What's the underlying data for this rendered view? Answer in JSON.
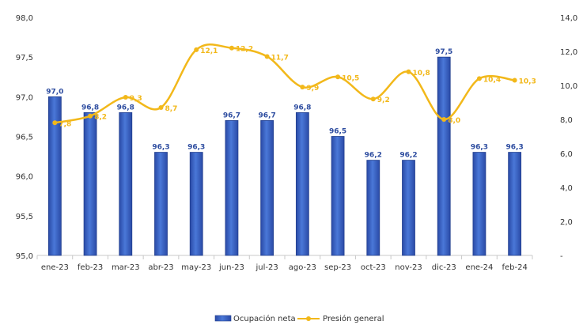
{
  "chart_data": {
    "type": "bar",
    "categories": [
      "ene-23",
      "feb-23",
      "mar-23",
      "abr-23",
      "may-23",
      "jun-23",
      "jul-23",
      "ago-23",
      "sep-23",
      "oct-23",
      "nov-23",
      "dic-23",
      "ene-24",
      "feb-24"
    ],
    "series": [
      {
        "name": "Ocupación neta",
        "type": "bar",
        "axis": "left",
        "color": "#3b63c4",
        "values": [
          97.0,
          96.8,
          96.8,
          96.3,
          96.3,
          96.7,
          96.7,
          96.8,
          96.5,
          96.2,
          96.2,
          97.5,
          96.3,
          96.3
        ],
        "labels": [
          "97,0",
          "96,8",
          "96,8",
          "96,3",
          "96,3",
          "96,7",
          "96,7",
          "96,8",
          "96,5",
          "96,2",
          "96,2",
          "97,5",
          "96,3",
          "96,3"
        ]
      },
      {
        "name": "Presión general",
        "type": "line",
        "axis": "right",
        "color": "#f2b81a",
        "values": [
          7.8,
          8.2,
          9.3,
          8.7,
          12.1,
          12.2,
          11.7,
          9.9,
          10.5,
          9.2,
          10.8,
          8.0,
          10.4,
          10.3
        ],
        "labels": [
          "7,8",
          "8,2",
          "9,3",
          "8,7",
          "12,1",
          "12,2",
          "11,7",
          "9,9",
          "10,5",
          "9,2",
          "10,8",
          "8,0",
          "10,4",
          "10,3"
        ]
      }
    ],
    "y_left": {
      "min": 95.0,
      "max": 98.0,
      "ticks": [
        95.0,
        95.5,
        96.0,
        96.5,
        97.0,
        97.5,
        98.0
      ],
      "tick_labels": [
        "95,0",
        "95,5",
        "96,0",
        "96,5",
        "97,0",
        "97,5",
        "98,0"
      ]
    },
    "y_right": {
      "min": 0,
      "max": 14,
      "ticks": [
        0,
        2,
        4,
        6,
        8,
        10,
        12,
        14
      ],
      "tick_labels": [
        "-",
        "2,0",
        "4,0",
        "6,0",
        "8,0",
        "10,0",
        "12,0",
        "14,0"
      ]
    },
    "grid": false,
    "legend_position": "bottom",
    "title": "",
    "xlabel": "",
    "ylabel": ""
  }
}
